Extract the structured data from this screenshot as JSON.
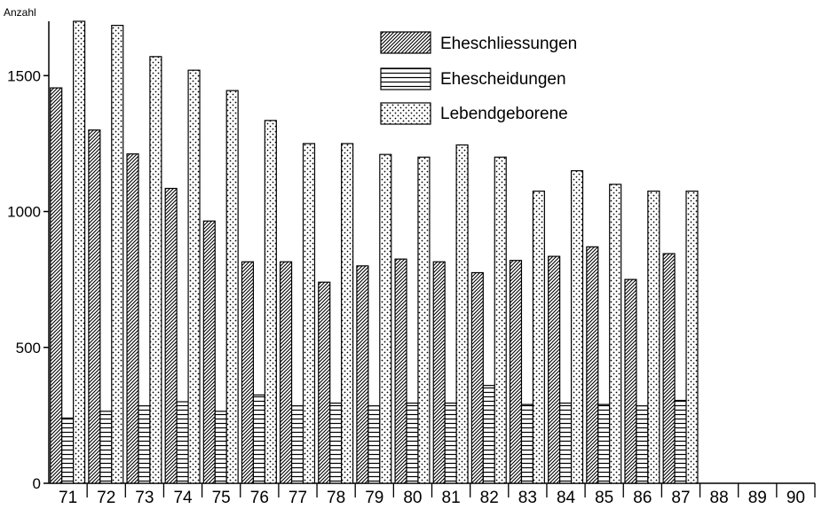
{
  "chart_data": {
    "type": "bar",
    "title": "",
    "ylabel": "Anzahl",
    "xlabel": "",
    "ylim": [
      0,
      1700
    ],
    "yticks": [
      0,
      500,
      1000,
      1500
    ],
    "grid": false,
    "legend_position": "top-center",
    "categories": [
      "71",
      "72",
      "73",
      "74",
      "75",
      "76",
      "77",
      "78",
      "79",
      "80",
      "81",
      "82",
      "83",
      "84",
      "85",
      "86",
      "87",
      "88",
      "89",
      "90"
    ],
    "series": [
      {
        "name": "Eheschliessungen",
        "pattern": "diagonal-hatch",
        "values": [
          1455,
          1300,
          1212,
          1085,
          965,
          815,
          815,
          740,
          800,
          825,
          815,
          775,
          820,
          835,
          870,
          750,
          845,
          null,
          null,
          null
        ]
      },
      {
        "name": "Ehescheidungen",
        "pattern": "horizontal-lines",
        "values": [
          240,
          265,
          285,
          300,
          265,
          325,
          285,
          295,
          285,
          295,
          295,
          360,
          290,
          295,
          290,
          285,
          305,
          null,
          null,
          null
        ]
      },
      {
        "name": "Lebendgeborene",
        "pattern": "dots",
        "values": [
          1700,
          1685,
          1570,
          1520,
          1445,
          1335,
          1250,
          1250,
          1210,
          1200,
          1245,
          1200,
          1075,
          1150,
          1100,
          1075,
          1075,
          null,
          null,
          null
        ]
      }
    ]
  }
}
